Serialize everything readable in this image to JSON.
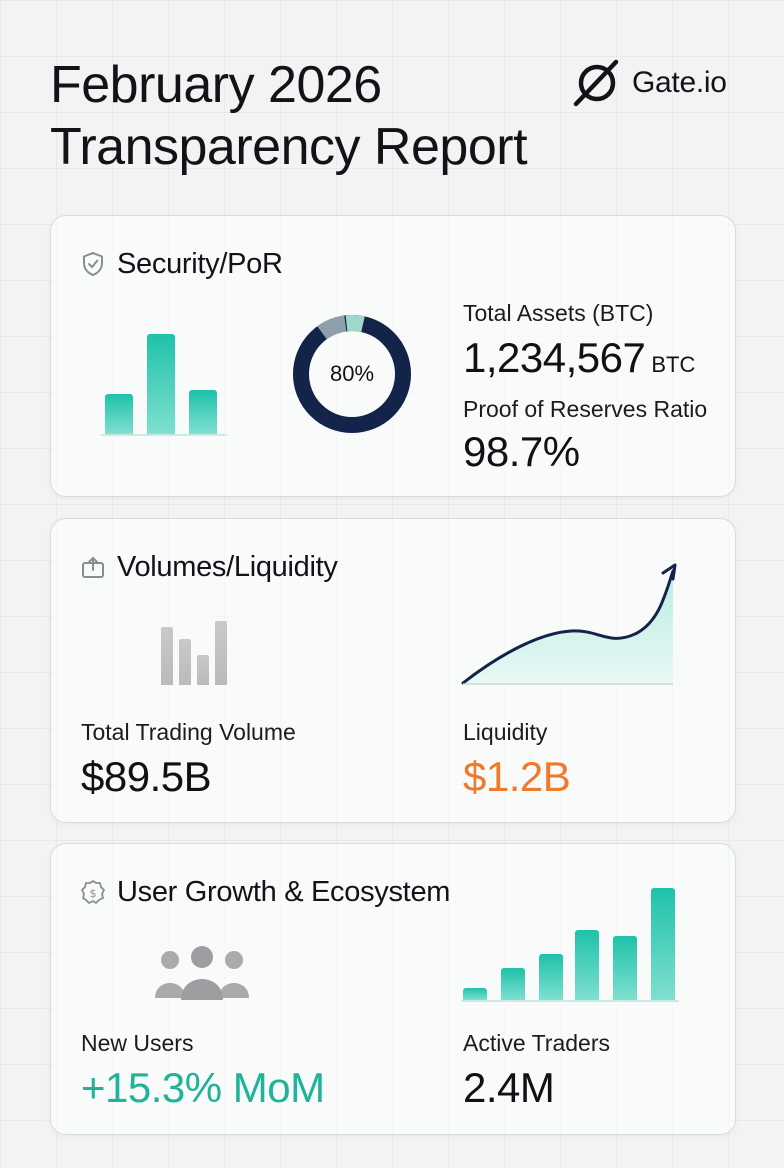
{
  "title": {
    "line1": "February 2026",
    "line2": "Transparency Report"
  },
  "brand": {
    "name": "Gate.io",
    "icon": "gate-logo-icon"
  },
  "security": {
    "title": "Security/PoR",
    "icon": "shield-icon",
    "donut_label": "80%",
    "donut_value": 0.8,
    "total_assets_label": "Total Assets (BTC)",
    "total_assets_value": "1,234,567",
    "total_assets_unit": "BTC",
    "por_label": "Proof of Reserves Ratio",
    "por_value": "98.7%"
  },
  "volumes": {
    "title": "Volumes/Liquidity",
    "icon": "upload-box-icon",
    "trading_label": "Total Trading Volume",
    "trading_value": "$89.5B",
    "liquidity_label": "Liquidity",
    "liquidity_value": "$1.2B"
  },
  "growth": {
    "title": "User Growth & Ecosystem",
    "icon": "dollar-badge-icon",
    "new_users_label": "New Users",
    "new_users_value": "+15.3% MoM",
    "active_traders_label": "Active Traders",
    "active_traders_value": "2.4M"
  },
  "colors": {
    "teal": "#1fc1a9",
    "navy": "#13234a",
    "orange": "#f07a2a"
  }
}
